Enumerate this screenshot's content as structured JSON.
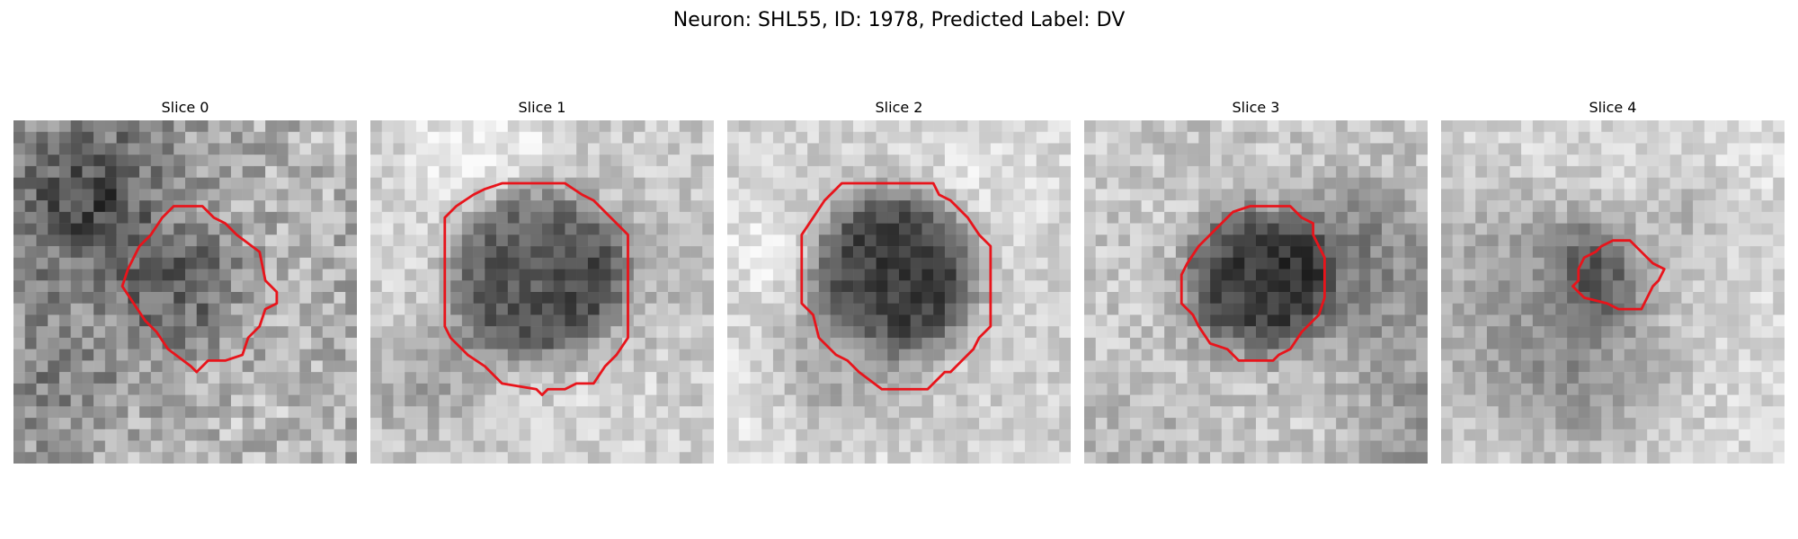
{
  "title": "Neuron: SHL55, ID: 1978, Predicted Label: DV",
  "colors": {
    "contour": "#e8141b",
    "background": "#ffffff"
  },
  "panels": [
    {
      "title": "Slice 0"
    },
    {
      "title": "Slice 1"
    },
    {
      "title": "Slice 2"
    },
    {
      "title": "Slice 3"
    },
    {
      "title": "Slice 4"
    }
  ]
}
